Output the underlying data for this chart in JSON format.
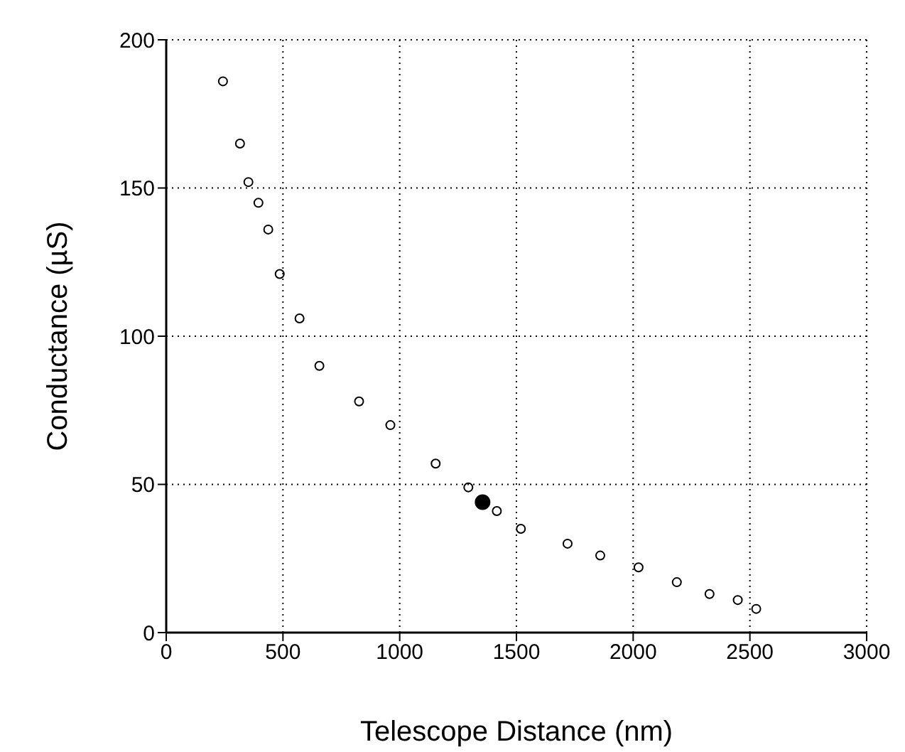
{
  "chart_data": {
    "type": "scatter",
    "xlabel": "Telescope Distance (nm)",
    "ylabel": "Conductance (µS)",
    "xlim": [
      0,
      3000
    ],
    "xticks": [
      0,
      500,
      1000,
      1500,
      2000,
      2500,
      3000
    ],
    "ylim": [
      0,
      200
    ],
    "yticks": [
      0,
      50,
      100,
      150,
      200
    ],
    "grid": true,
    "marker": "circle",
    "legend": false,
    "series": [
      {
        "color": "#000000",
        "x": [
          243,
          316,
          352,
          395,
          437,
          486,
          571,
          656,
          826,
          960,
          1154,
          1294,
          1416,
          1519,
          1719,
          1859,
          2023,
          2187,
          2327,
          2448,
          2527
        ],
        "values": [
          186,
          165,
          152,
          145,
          136,
          121,
          106,
          90,
          78,
          70,
          57,
          49,
          41,
          35,
          30,
          26,
          22,
          17,
          13,
          11,
          8
        ]
      },
      {
        "color": "#000000",
        "x": [
          1355
        ],
        "values": [
          44
        ]
      }
    ]
  }
}
